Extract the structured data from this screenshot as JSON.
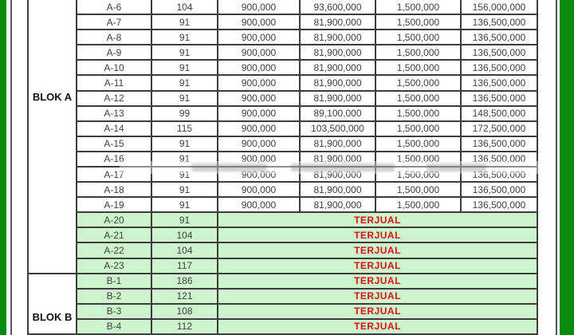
{
  "colors": {
    "frame_green": "#0a8a0a",
    "sold_row_green": "#cdf4cd",
    "sold_text_red": "#dd0f0f",
    "grid_border": "#3d3d3d",
    "number_text": "#404040"
  },
  "table": {
    "sold_label": "TERJUAL",
    "blocks": [
      {
        "label": "BLOK A"
      },
      {
        "label": "BLOK B"
      }
    ],
    "columns": [
      "block",
      "unit",
      "size",
      "price_per_m2",
      "subtotal",
      "price2_per_m2",
      "total"
    ],
    "rows": [
      {
        "unit": "A-6",
        "size": "104",
        "sold": false,
        "values": [
          "900,000",
          "93,600,000",
          "1,500,000",
          "156,000,000"
        ]
      },
      {
        "unit": "A-7",
        "size": "91",
        "sold": false,
        "values": [
          "900,000",
          "81,900,000",
          "1,500,000",
          "136,500,000"
        ]
      },
      {
        "unit": "A-8",
        "size": "91",
        "sold": false,
        "values": [
          "900,000",
          "81,900,000",
          "1,500,000",
          "136,500,000"
        ]
      },
      {
        "unit": "A-9",
        "size": "91",
        "sold": false,
        "values": [
          "900,000",
          "81,900,000",
          "1,500,000",
          "136,500,000"
        ]
      },
      {
        "unit": "A-10",
        "size": "91",
        "sold": false,
        "values": [
          "900,000",
          "81,900,000",
          "1,500,000",
          "136,500,000"
        ]
      },
      {
        "unit": "A-11",
        "size": "91",
        "sold": false,
        "values": [
          "900,000",
          "81,900,000",
          "1,500,000",
          "136,500,000"
        ]
      },
      {
        "unit": "A-12",
        "size": "91",
        "sold": false,
        "values": [
          "900,000",
          "81,900,000",
          "1,500,000",
          "136,500,000"
        ]
      },
      {
        "unit": "A-13",
        "size": "99",
        "sold": false,
        "values": [
          "900,000",
          "89,100,000",
          "1,500,000",
          "148,500,000"
        ]
      },
      {
        "unit": "A-14",
        "size": "115",
        "sold": false,
        "values": [
          "900,000",
          "103,500,000",
          "1,500,000",
          "172,500,000"
        ]
      },
      {
        "unit": "A-15",
        "size": "91",
        "sold": false,
        "values": [
          "900,000",
          "81,900,000",
          "1,500,000",
          "136,500,000"
        ]
      },
      {
        "unit": "A-16",
        "size": "91",
        "sold": false,
        "values": [
          "900,000",
          "81,900,000",
          "1,500,000",
          "136,500,000"
        ]
      },
      {
        "unit": "A-17",
        "size": "91",
        "sold": false,
        "values": [
          "900,000",
          "81,900,000",
          "1,500,000",
          "136,500,000"
        ]
      },
      {
        "unit": "A-18",
        "size": "91",
        "sold": false,
        "values": [
          "900,000",
          "81,900,000",
          "1,500,000",
          "136,500,000"
        ]
      },
      {
        "unit": "A-19",
        "size": "91",
        "sold": false,
        "values": [
          "900,000",
          "81,900,000",
          "1,500,000",
          "136,500,000"
        ]
      },
      {
        "unit": "A-20",
        "size": "91",
        "sold": true,
        "values": []
      },
      {
        "unit": "A-21",
        "size": "104",
        "sold": true,
        "values": []
      },
      {
        "unit": "A-22",
        "size": "104",
        "sold": true,
        "values": []
      },
      {
        "unit": "A-23",
        "size": "117",
        "sold": true,
        "values": []
      },
      {
        "unit": "B-1",
        "size": "186",
        "sold": true,
        "values": []
      },
      {
        "unit": "B-2",
        "size": "121",
        "sold": true,
        "values": []
      },
      {
        "unit": "B-3",
        "size": "108",
        "sold": true,
        "values": []
      },
      {
        "unit": "B-4",
        "size": "112",
        "sold": true,
        "values": []
      }
    ],
    "block_row_spans": {
      "blok_a_rows": 18,
      "blok_b_rows": 4
    }
  }
}
